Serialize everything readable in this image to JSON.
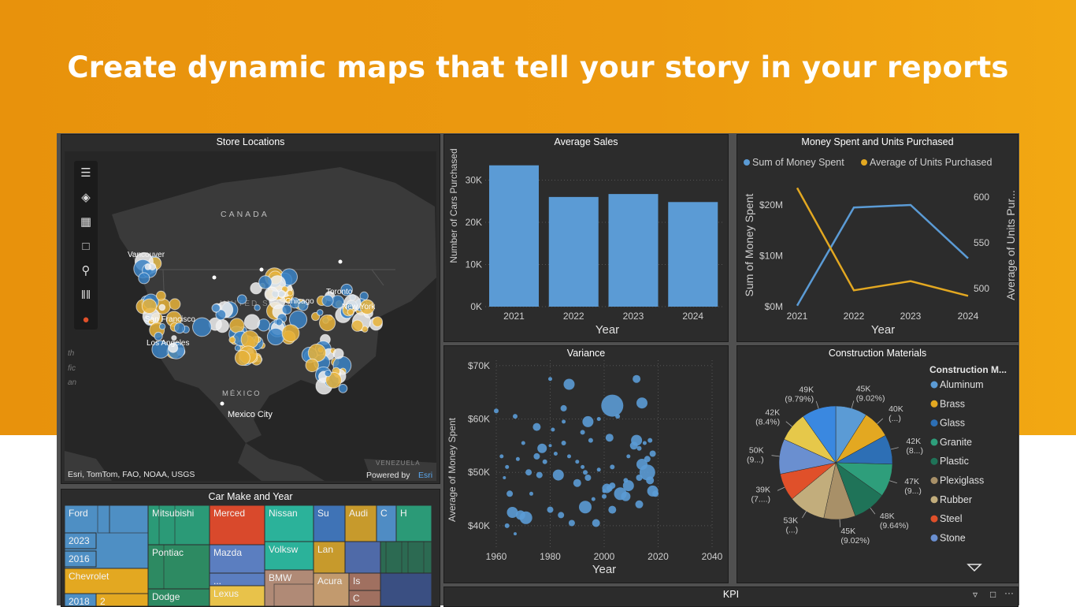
{
  "banner": {
    "title": "Create dynamic maps that tell your story in your reports"
  },
  "map": {
    "title": "Store Locations",
    "labels": {
      "canada": "CANADA",
      "united_states": "UNITED STATES",
      "mexico": "MÉXICO",
      "mexico_city": "Mexico City",
      "vancouver": "Vancouver",
      "san_francisco": "San Francisco",
      "los_angeles": "Los Angeles",
      "chicago": "Chicago",
      "toronto": "Toronto",
      "new_york": "New York",
      "venezuela": "VENEZUELA"
    },
    "attribution": "Esri, TomTom, FAO, NOAA, USGS",
    "powered_by": "Powered by",
    "powered_by_brand": "Esri",
    "tools": [
      "menu-icon",
      "layers-icon",
      "qr-icon",
      "select-icon",
      "search-icon",
      "bars-icon",
      "avatar-icon"
    ],
    "colors": {
      "blue": "#3b82c4",
      "yellow": "#e8b339",
      "white": "#f0f0f0"
    }
  },
  "avg_sales": {
    "title": "Average Sales",
    "chart_data": {
      "type": "bar",
      "categories": [
        "2021",
        "2022",
        "2023",
        "2024"
      ],
      "values": [
        33500,
        26000,
        26700,
        24800
      ],
      "xlabel": "Year",
      "ylabel": "Number of Cars Purchased",
      "yticks": [
        "0K",
        "10K",
        "20K",
        "30K"
      ],
      "ylim": [
        0,
        37000
      ],
      "color": "#5b9bd5"
    }
  },
  "money_units": {
    "title": "Money Spent and Units Purchased",
    "legend": [
      {
        "name": "Sum of Money Spent",
        "color": "#5b9bd5"
      },
      {
        "name": "Average of Units Purchased",
        "color": "#e3a821"
      }
    ],
    "chart_data": {
      "type": "line",
      "x": [
        "2021",
        "2022",
        "2023",
        "2024"
      ],
      "series": [
        {
          "name": "Sum of Money Spent",
          "values": [
            0.2,
            19.5,
            20,
            9.5
          ],
          "axis": "left"
        },
        {
          "name": "Average of Units Purchased",
          "values": [
            610,
            498,
            508,
            492
          ],
          "axis": "right"
        }
      ],
      "xlabel": "Year",
      "ylabel_left": "Sum of Money Spent",
      "ylabel_right": "Average of Units Pur...",
      "yticks_left": [
        "$0M",
        "$10M",
        "$20M"
      ],
      "yticks_right": [
        "500",
        "550",
        "600"
      ]
    }
  },
  "variance": {
    "title": "Variance",
    "chart_data": {
      "type": "scatter",
      "xlabel": "Year",
      "ylabel": "Average of Money Spent",
      "xticks": [
        "1960",
        "1980",
        "2000",
        "2020",
        "2040"
      ],
      "yticks": [
        "$40K",
        "$50K",
        "$60K",
        "$70K"
      ],
      "xlim": [
        1960,
        2040
      ],
      "ylim": [
        36000,
        71000
      ],
      "color": "#5b9bd5",
      "points": [
        [
          1960,
          61500,
          3
        ],
        [
          1962,
          53000,
          2.5
        ],
        [
          1963,
          49000,
          2
        ],
        [
          1964,
          51000,
          2.5
        ],
        [
          1964,
          40000,
          3
        ],
        [
          1965,
          46000,
          4
        ],
        [
          1966,
          42500,
          7
        ],
        [
          1967,
          38500,
          2
        ],
        [
          1967,
          60500,
          3
        ],
        [
          1968,
          52500,
          2.5
        ],
        [
          1969,
          42000,
          6
        ],
        [
          1970,
          55500,
          2.5
        ],
        [
          1971,
          41500,
          8
        ],
        [
          1972,
          50000,
          4
        ],
        [
          1973,
          46000,
          2.5
        ],
        [
          1975,
          53000,
          4
        ],
        [
          1975,
          58500,
          5
        ],
        [
          1976,
          49500,
          4
        ],
        [
          1977,
          54500,
          6
        ],
        [
          1978,
          52000,
          3
        ],
        [
          1980,
          67500,
          2.5
        ],
        [
          1980,
          43000,
          4
        ],
        [
          1980,
          55000,
          2
        ],
        [
          1981,
          58000,
          2.5
        ],
        [
          1982,
          53500,
          2.5
        ],
        [
          1983,
          49500,
          7
        ],
        [
          1984,
          42000,
          4
        ],
        [
          1985,
          55500,
          3
        ],
        [
          1985,
          59500,
          2.5
        ],
        [
          1985,
          62000,
          4
        ],
        [
          1987,
          66500,
          7
        ],
        [
          1987,
          53000,
          2.5
        ],
        [
          1988,
          40500,
          4
        ],
        [
          1990,
          48000,
          5
        ],
        [
          1990,
          52000,
          2.5
        ],
        [
          1992,
          51000,
          2.5
        ],
        [
          1992,
          57500,
          3
        ],
        [
          1993,
          50000,
          3
        ],
        [
          1993,
          43500,
          8
        ],
        [
          1994,
          49000,
          4
        ],
        [
          1994,
          59500,
          7
        ],
        [
          1995,
          56000,
          3
        ],
        [
          1996,
          45000,
          2.5
        ],
        [
          1997,
          40500,
          5
        ],
        [
          1998,
          50500,
          2.5
        ],
        [
          1998,
          60000,
          2.5
        ],
        [
          2000,
          46500,
          2.5
        ],
        [
          2000,
          45500,
          3
        ],
        [
          2001,
          47000,
          6
        ],
        [
          2002,
          47000,
          4
        ],
        [
          2002,
          56500,
          5
        ],
        [
          2003,
          51000,
          3
        ],
        [
          2003,
          47500,
          4
        ],
        [
          2003,
          43000,
          5
        ],
        [
          2003,
          62500,
          14
        ],
        [
          2005,
          60500,
          3
        ],
        [
          2006,
          46000,
          8
        ],
        [
          2008,
          45500,
          6
        ],
        [
          2008,
          48500,
          3
        ],
        [
          2009,
          53000,
          2.5
        ],
        [
          2009,
          47500,
          7
        ],
        [
          2011,
          55000,
          5
        ],
        [
          2012,
          56000,
          7
        ],
        [
          2012,
          67500,
          5
        ],
        [
          2013,
          54500,
          3
        ],
        [
          2013,
          49000,
          4
        ],
        [
          2013,
          44000,
          5
        ],
        [
          2014,
          51500,
          7
        ],
        [
          2014,
          63000,
          7
        ],
        [
          2015,
          55500,
          2.5
        ],
        [
          2016,
          52500,
          4
        ],
        [
          2016,
          50000,
          10
        ],
        [
          2017,
          48500,
          5
        ],
        [
          2017,
          56000,
          3
        ],
        [
          2018,
          53500,
          4
        ],
        [
          2018,
          46500,
          7
        ],
        [
          2019,
          46000,
          4
        ]
      ]
    }
  },
  "materials": {
    "title": "Construction Materials",
    "legend_title": "Construction M...",
    "chart_data": {
      "type": "pie",
      "slices": [
        {
          "name": "Aluminum",
          "value": 45,
          "label": "45K (9.02%)",
          "color": "#5b9bd5"
        },
        {
          "name": "Brass",
          "value": 40,
          "label": "40K (...)",
          "color": "#e3a821"
        },
        {
          "name": "Glass",
          "value": 42,
          "label": "42K (8...)",
          "color": "#2d6fb5"
        },
        {
          "name": "Granite",
          "value": 47,
          "label": "47K (9...)",
          "color": "#2e9e7b"
        },
        {
          "name": "Plastic",
          "value": 48,
          "label": "48K (9.64%)",
          "color": "#1f7358"
        },
        {
          "name": "Plexiglass",
          "value": 45,
          "label": "45K (9.02%)",
          "color": "#a89068"
        },
        {
          "name": "Rubber",
          "value": 53,
          "label": "53K (...)",
          "color": "#c2ad7c"
        },
        {
          "name": "Steel",
          "value": 39,
          "label": "39K (7....)",
          "color": "#e0502a"
        },
        {
          "name": "Stone",
          "value": 50,
          "label": "50K (9...)",
          "color": "#6a8fd0"
        },
        {
          "name": "",
          "value": 42,
          "label": "42K (8.4%)",
          "color": "#e6c84a"
        },
        {
          "name": "",
          "value": 49,
          "label": "49K (9.79%)",
          "color": "#3a88e0"
        }
      ]
    }
  },
  "treemap": {
    "title": "Car Make and Year",
    "labels": [
      "Ford",
      "Mitsubishi",
      "Merced",
      "Nissan",
      "Su",
      "Audi",
      "C",
      "H",
      "2023",
      "2016",
      "Pontiac",
      "Mazda",
      "Volksw",
      "Lan",
      "...",
      "Chevrolet",
      "Lexus",
      "BMW",
      "Acura",
      "Is",
      "Dodge",
      "2018",
      "2",
      "C"
    ]
  },
  "kpi": {
    "title": "KPI"
  }
}
